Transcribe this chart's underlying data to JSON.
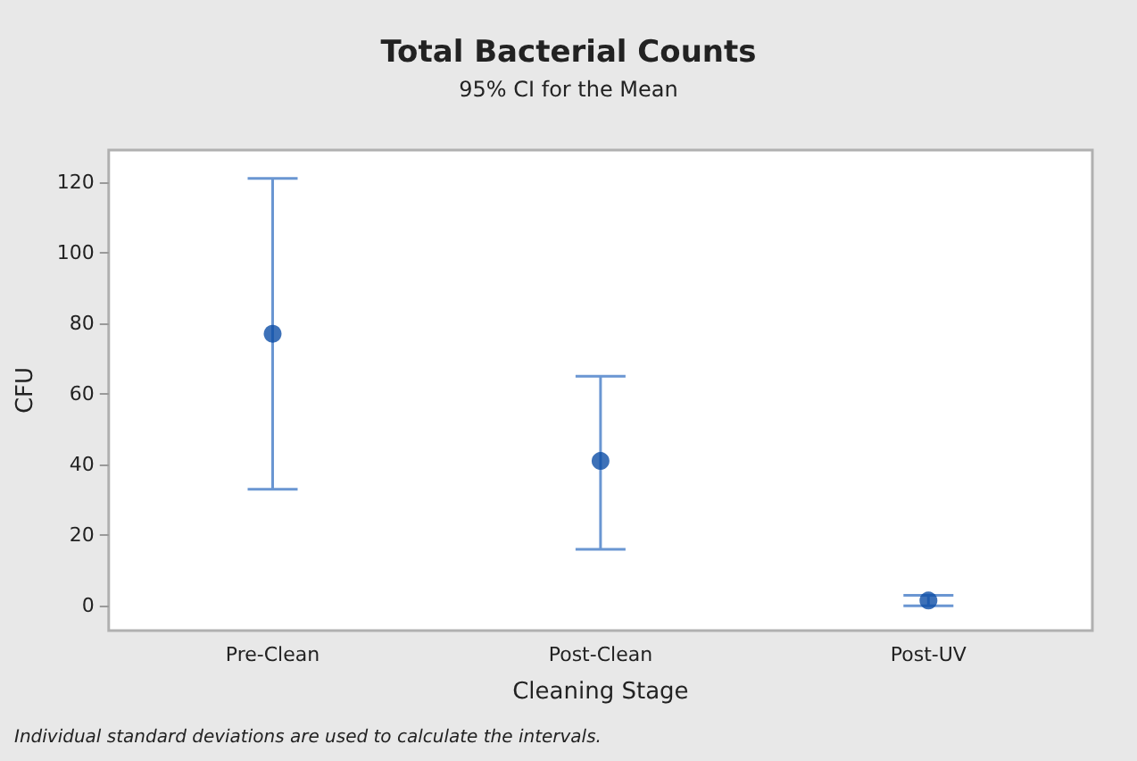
{
  "chart_data": {
    "type": "scatter",
    "title": "Total Bacterial Counts",
    "subtitle": "95% CI for the Mean",
    "xlabel": "Cleaning Stage",
    "ylabel": "CFU",
    "categories": [
      "Pre-Clean",
      "Post-Clean",
      "Post-UV"
    ],
    "values": [
      77,
      41,
      1.5
    ],
    "errors": [
      [
        33,
        121
      ],
      [
        16,
        65
      ],
      [
        0,
        3
      ]
    ],
    "color": "#0d4ea6",
    "marker": "circle",
    "grid": false,
    "ylim": [
      -7,
      129
    ],
    "yticks": [
      0,
      20,
      40,
      60,
      80,
      100,
      120
    ],
    "annotations": [
      "Individual standard deviations are used to calculate the intervals."
    ]
  }
}
